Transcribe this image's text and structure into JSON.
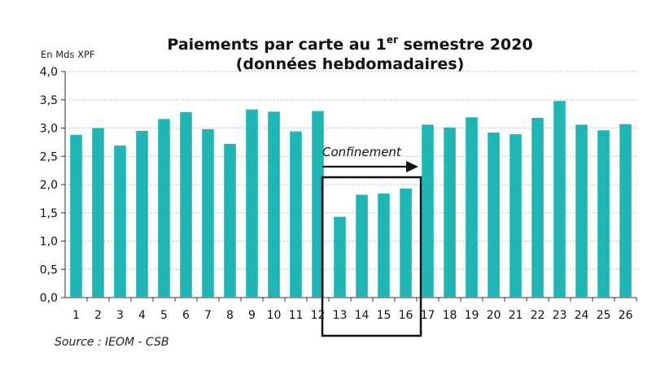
{
  "chart_data": {
    "type": "bar",
    "title_main": "Paiements par carte au 1",
    "title_sup": "er",
    "title_rest": " semestre 2020",
    "subtitle": "(données hebdomadaires)",
    "ylabel": "En Mds XPF",
    "xlabel": "",
    "ylim": [
      0,
      4
    ],
    "yticks": [
      "0,0",
      "0,5",
      "1,0",
      "1,5",
      "2,0",
      "2,5",
      "3,0",
      "3,5",
      "4,0"
    ],
    "grid": true,
    "categories": [
      "1",
      "2",
      "3",
      "4",
      "5",
      "6",
      "7",
      "8",
      "9",
      "10",
      "11",
      "12",
      "13",
      "14",
      "15",
      "16",
      "17",
      "18",
      "19",
      "20",
      "21",
      "22",
      "23",
      "24",
      "25",
      "26"
    ],
    "values": [
      2.88,
      3.0,
      2.69,
      2.95,
      3.16,
      3.28,
      2.98,
      2.72,
      3.33,
      3.29,
      2.94,
      3.3,
      1.43,
      1.82,
      1.84,
      1.93,
      3.06,
      3.01,
      3.19,
      2.92,
      2.89,
      3.18,
      3.48,
      3.06,
      2.96,
      3.07
    ],
    "bar_color": "#1fb5b5",
    "grid_color": "#c8c8c8",
    "annotation": {
      "label": "Confinement",
      "categories_spanned": [
        "13",
        "16"
      ]
    },
    "source": "Source : IEOM - CSB"
  }
}
